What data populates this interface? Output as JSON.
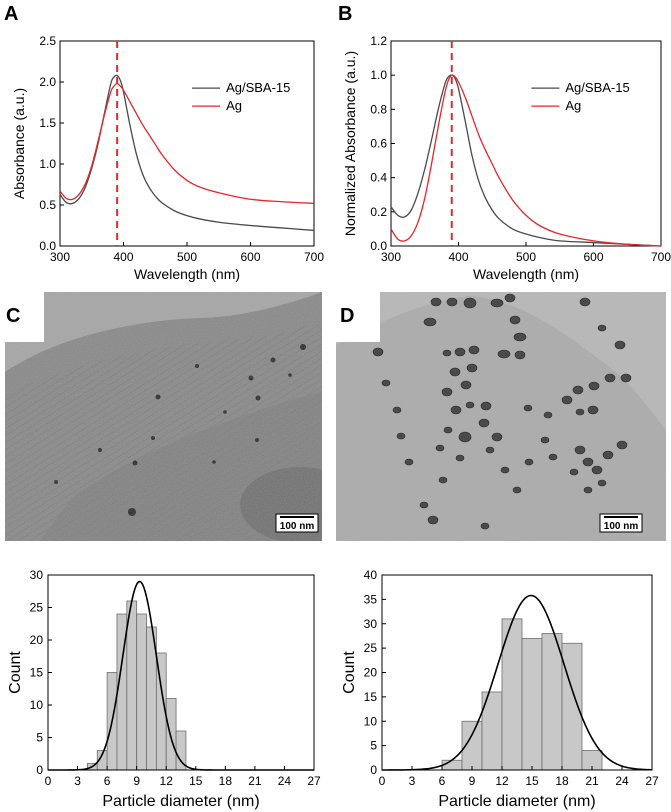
{
  "panels": {
    "A": "A",
    "B": "B",
    "C": "C",
    "D": "D"
  },
  "images": {
    "C": {
      "scale_bar": "100 nm"
    },
    "D": {
      "scale_bar": "100 nm"
    }
  },
  "colors": {
    "ag_sba15": "#4a4a4a",
    "ag": "#e8262a",
    "marker": "#e8262a",
    "bar_fill": "#c8c8c8",
    "fit_line": "#000000"
  },
  "chart_data": [
    {
      "id": "A",
      "type": "line",
      "title": "",
      "xlabel": "Wavelength (nm)",
      "ylabel": "Absorbance (a.u.)",
      "xlim": [
        300,
        700
      ],
      "ylim": [
        0.0,
        2.5
      ],
      "xticks": [
        300,
        400,
        500,
        600,
        700
      ],
      "yticks": [
        0.0,
        0.5,
        1.0,
        1.5,
        2.0,
        2.5
      ],
      "ytick_labels": [
        "0.0",
        "0.5",
        "1.0",
        "1.5",
        "2.0",
        "2.5"
      ],
      "vline": 390,
      "legend": "top-right",
      "series": [
        {
          "name": "Ag/SBA-15",
          "color": "#4a4a4a",
          "x": [
            300,
            310,
            320,
            330,
            340,
            350,
            360,
            370,
            380,
            385,
            390,
            395,
            400,
            410,
            420,
            430,
            440,
            450,
            460,
            480,
            500,
            520,
            550,
            600,
            650,
            700
          ],
          "y": [
            0.63,
            0.53,
            0.52,
            0.58,
            0.72,
            0.95,
            1.25,
            1.62,
            1.98,
            2.06,
            2.08,
            2.02,
            1.88,
            1.48,
            1.13,
            0.88,
            0.72,
            0.61,
            0.53,
            0.43,
            0.37,
            0.33,
            0.29,
            0.25,
            0.22,
            0.19
          ]
        },
        {
          "name": "Ag",
          "color": "#e8262a",
          "x": [
            300,
            310,
            320,
            330,
            340,
            350,
            360,
            370,
            380,
            385,
            390,
            395,
            400,
            410,
            420,
            430,
            440,
            450,
            460,
            480,
            500,
            520,
            550,
            600,
            650,
            700
          ],
          "y": [
            0.67,
            0.58,
            0.57,
            0.63,
            0.76,
            0.98,
            1.28,
            1.6,
            1.88,
            1.95,
            1.98,
            1.95,
            1.9,
            1.76,
            1.62,
            1.48,
            1.36,
            1.24,
            1.12,
            0.93,
            0.8,
            0.72,
            0.65,
            0.57,
            0.54,
            0.52
          ]
        }
      ]
    },
    {
      "id": "B",
      "type": "line",
      "title": "",
      "xlabel": "Wavelength (nm)",
      "ylabel": "Normalized Absorbance (a.u.)",
      "xlim": [
        300,
        700
      ],
      "ylim": [
        0.0,
        1.2
      ],
      "xticks": [
        300,
        400,
        500,
        600,
        700
      ],
      "yticks": [
        0.0,
        0.2,
        0.4,
        0.6,
        0.8,
        1.0,
        1.2
      ],
      "ytick_labels": [
        "0.0",
        "0.2",
        "0.4",
        "0.6",
        "0.8",
        "1.0",
        "1.2"
      ],
      "vline": 390,
      "legend": "top-right",
      "series": [
        {
          "name": "Ag/SBA-15",
          "color": "#4a4a4a",
          "x": [
            300,
            310,
            320,
            330,
            340,
            350,
            360,
            370,
            380,
            385,
            390,
            395,
            400,
            410,
            420,
            430,
            440,
            450,
            460,
            480,
            500,
            520,
            550,
            600,
            650,
            700
          ],
          "y": [
            0.23,
            0.18,
            0.17,
            0.21,
            0.31,
            0.45,
            0.62,
            0.8,
            0.95,
            0.99,
            1.0,
            0.98,
            0.92,
            0.73,
            0.53,
            0.38,
            0.28,
            0.21,
            0.16,
            0.1,
            0.07,
            0.05,
            0.03,
            0.02,
            0.01,
            0.0
          ]
        },
        {
          "name": "Ag",
          "color": "#e8262a",
          "x": [
            300,
            310,
            320,
            330,
            340,
            350,
            360,
            370,
            380,
            385,
            390,
            395,
            400,
            410,
            420,
            430,
            440,
            450,
            460,
            480,
            500,
            520,
            550,
            600,
            650,
            700
          ],
          "y": [
            0.1,
            0.04,
            0.03,
            0.06,
            0.14,
            0.28,
            0.48,
            0.7,
            0.9,
            0.97,
            1.0,
            0.99,
            0.96,
            0.87,
            0.76,
            0.65,
            0.56,
            0.48,
            0.4,
            0.27,
            0.18,
            0.12,
            0.07,
            0.03,
            0.01,
            0.0
          ]
        }
      ]
    },
    {
      "id": "C-hist",
      "type": "bar",
      "title": "",
      "xlabel": "Particle diameter (nm)",
      "ylabel": "Count",
      "xlim": [
        0,
        27
      ],
      "ylim": [
        0,
        30
      ],
      "xticks": [
        0,
        3,
        6,
        9,
        12,
        15,
        18,
        21,
        24,
        27
      ],
      "yticks": [
        0,
        5,
        10,
        15,
        20,
        25,
        30
      ],
      "bin_width": 1,
      "bin_starts": [
        4,
        5,
        6,
        7,
        8,
        9,
        10,
        11,
        12,
        13
      ],
      "values": [
        1,
        3,
        15,
        24,
        26,
        24,
        22,
        18,
        11,
        6
      ],
      "fit": {
        "type": "gaussian",
        "center": 9.3,
        "sigma": 1.7,
        "peak": 29
      }
    },
    {
      "id": "D-hist",
      "type": "bar",
      "title": "",
      "xlabel": "Particle diameter (nm)",
      "ylabel": "Count",
      "xlim": [
        0,
        27
      ],
      "ylim": [
        0,
        40
      ],
      "xticks": [
        0,
        3,
        6,
        9,
        12,
        15,
        18,
        21,
        24,
        27
      ],
      "yticks": [
        0,
        5,
        10,
        15,
        20,
        25,
        30,
        35,
        40
      ],
      "bin_width": 2,
      "bin_starts": [
        6,
        8,
        10,
        12,
        14,
        16,
        18,
        20
      ],
      "values": [
        2,
        10,
        16,
        31,
        27,
        28,
        26,
        4
      ],
      "fit": {
        "type": "gaussian",
        "center": 14.9,
        "sigma": 3.3,
        "peak": 35.8
      }
    }
  ]
}
